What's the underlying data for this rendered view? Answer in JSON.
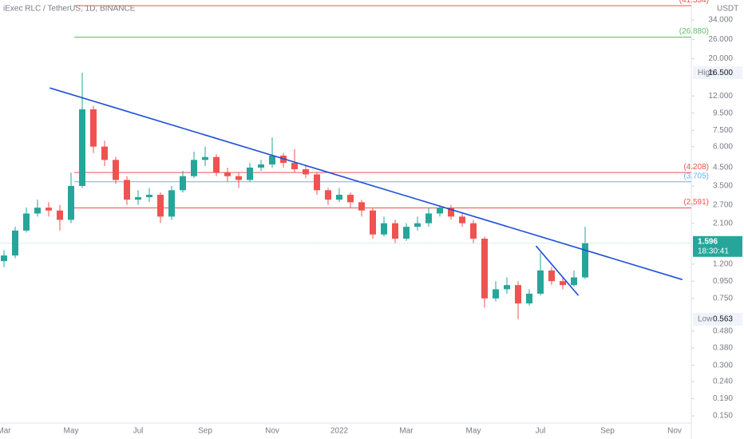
{
  "chart_data": {
    "type": "candlestick",
    "title": "iExec RLC / TetherUS, 1D, BINANCE",
    "currency": "USDT",
    "categories": [
      "Mar",
      null,
      null,
      null,
      null,
      null,
      "May",
      null,
      null,
      null,
      null,
      null,
      "Jul",
      null,
      null,
      null,
      null,
      null,
      "Sep",
      null,
      null,
      null,
      null,
      null,
      "Nov",
      null,
      null,
      null,
      null,
      null,
      "2022",
      null,
      null,
      null,
      null,
      null,
      "Mar",
      null,
      null,
      null,
      null,
      null,
      "May",
      null,
      null,
      null,
      null,
      null,
      "Jul",
      null,
      null,
      null,
      null,
      null,
      "Sep",
      null,
      null,
      null,
      null,
      null,
      "Nov",
      null
    ],
    "series": {
      "up_color": "#26a69a",
      "down_color": "#ef5350",
      "open": [
        1.25,
        1.35,
        1.9,
        2.4,
        2.6,
        2.5,
        2.2,
        3.5,
        10,
        6,
        5,
        3.8,
        2.9,
        3.0,
        3.1,
        2.3,
        3.3,
        4.0,
        5.0,
        5.2,
        4.2,
        4.0,
        3.8,
        4.5,
        4.7,
        5.3,
        4.8,
        4.4,
        4.1,
        3.3,
        2.9,
        3.1,
        2.8,
        2.5,
        1.8,
        2.1,
        1.7,
        2.0,
        2.1,
        2.4,
        2.6,
        2.3,
        2.1,
        1.7,
        0.75,
        0.85,
        0.9,
        0.7,
        0.8,
        1.1,
        0.95,
        0.9,
        1.0,
        null,
        null,
        null,
        null,
        null,
        null,
        null,
        null,
        null
      ],
      "high": [
        1.45,
        2.0,
        2.6,
        2.9,
        2.8,
        2.7,
        4.2,
        16.5,
        10.5,
        6.5,
        5.2,
        4.0,
        3.3,
        3.4,
        3.2,
        3.5,
        4.3,
        5.6,
        6.0,
        5.4,
        4.5,
        4.2,
        4.8,
        5.0,
        6.8,
        5.5,
        5.8,
        4.6,
        4.2,
        3.4,
        3.4,
        3.2,
        2.9,
        2.6,
        2.3,
        2.2,
        2.1,
        2.3,
        2.6,
        2.7,
        2.7,
        2.4,
        2.2,
        1.75,
        0.95,
        1.0,
        0.95,
        0.85,
        1.4,
        1.15,
        1.0,
        1.1,
        2.0,
        null,
        null,
        null,
        null,
        null,
        null,
        null,
        null,
        null
      ],
      "low": [
        1.15,
        1.3,
        1.85,
        2.3,
        2.3,
        1.9,
        2.1,
        3.4,
        5.5,
        4.6,
        3.6,
        2.7,
        2.7,
        2.8,
        2.1,
        2.2,
        3.2,
        3.9,
        4.6,
        4.0,
        3.7,
        3.4,
        3.7,
        4.3,
        4.5,
        4.5,
        4.2,
        3.9,
        3.1,
        2.7,
        2.8,
        2.6,
        2.3,
        1.7,
        1.75,
        1.6,
        1.65,
        1.9,
        2.0,
        2.3,
        2.2,
        2.0,
        1.6,
        0.66,
        0.72,
        0.8,
        0.563,
        0.68,
        0.78,
        0.9,
        0.85,
        0.88,
        0.98,
        null,
        null,
        null,
        null,
        null,
        null,
        null,
        null,
        null
      ],
      "close": [
        1.35,
        1.9,
        2.4,
        2.6,
        2.5,
        2.2,
        3.5,
        10,
        6,
        5,
        3.8,
        2.9,
        3.0,
        3.1,
        2.3,
        3.3,
        4.0,
        5.0,
        5.2,
        4.2,
        4.0,
        3.8,
        4.5,
        4.7,
        5.3,
        4.8,
        4.4,
        4.1,
        3.3,
        2.9,
        3.1,
        2.8,
        2.5,
        1.8,
        2.1,
        1.7,
        2.0,
        2.1,
        2.4,
        2.6,
        2.3,
        2.1,
        1.7,
        0.75,
        0.85,
        0.9,
        0.7,
        0.8,
        1.1,
        0.95,
        0.9,
        1.0,
        1.596,
        null,
        null,
        null,
        null,
        null,
        null,
        null,
        null,
        null
      ]
    },
    "log_scale": true,
    "ylim": [
      0.136,
      44.7
    ],
    "yticks": [
      {
        "value": 34,
        "label": "34.000"
      },
      {
        "value": 26,
        "label": "26.000"
      },
      {
        "value": 20,
        "label": "20.000"
      },
      {
        "value": 12,
        "label": "12.000"
      },
      {
        "value": 9.5,
        "label": "9.500"
      },
      {
        "value": 7.5,
        "label": "7.500"
      },
      {
        "value": 6,
        "label": "6.000"
      },
      {
        "value": 4.5,
        "label": "4.500"
      },
      {
        "value": 3.5,
        "label": "3.500"
      },
      {
        "value": 2.7,
        "label": "2.700"
      },
      {
        "value": 2.1,
        "label": "2.100"
      },
      {
        "value": 1.2,
        "label": "1.200"
      },
      {
        "value": 0.95,
        "label": "0.950"
      },
      {
        "value": 0.75,
        "label": "0.750"
      },
      {
        "value": 0.48,
        "label": "0.480"
      },
      {
        "value": 0.38,
        "label": "0.380"
      },
      {
        "value": 0.3,
        "label": "0.300"
      },
      {
        "value": 0.24,
        "label": "0.240"
      },
      {
        "value": 0.19,
        "label": "0.190"
      },
      {
        "value": 0.15,
        "label": "0.150"
      }
    ],
    "levels": [
      {
        "value": 41.334,
        "label": "(41.334)",
        "color": "#ef5350"
      },
      {
        "value": 26.88,
        "label": "(26.880)",
        "color": "#66bb6a"
      },
      {
        "value": 4.208,
        "label": "(4.208)",
        "color": "#ef5350"
      },
      {
        "value": 3.705,
        "label": "(3.705)",
        "color": "#64b5f6"
      },
      {
        "value": 2.591,
        "label": "(2.591)",
        "color": "#ef5350"
      }
    ],
    "trendlines": [
      {
        "color": "#1e4fd8",
        "x": [
          4.1,
          60.7
        ],
        "y": [
          13.4,
          0.97
        ]
      },
      {
        "color": "#1e4fd8",
        "x": [
          47.6,
          51.4
        ],
        "y": [
          1.54,
          0.78
        ]
      }
    ],
    "high_marker": {
      "text": "High",
      "value": 16.5,
      "value_label": "16.500"
    },
    "low_marker": {
      "text": "Low",
      "value": 0.563,
      "value_label": "0.563"
    },
    "countdown": "18:30:41"
  }
}
